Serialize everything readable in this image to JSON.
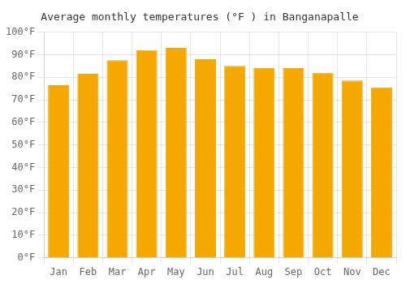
{
  "chart_data": {
    "type": "bar",
    "title": "Average monthly temperatures (°F ) in Banganapalle",
    "categories": [
      "Jan",
      "Feb",
      "Mar",
      "Apr",
      "May",
      "Jun",
      "Jul",
      "Aug",
      "Sep",
      "Oct",
      "Nov",
      "Dec"
    ],
    "values": [
      76.5,
      81.5,
      87.5,
      92.0,
      93.0,
      88.0,
      85.0,
      84.0,
      84.0,
      82.0,
      78.5,
      75.5
    ],
    "color": "#F5A800",
    "ylim": [
      0,
      100
    ],
    "yticks": [
      {
        "value": 0,
        "label": "0°F"
      },
      {
        "value": 10,
        "label": "10°F"
      },
      {
        "value": 20,
        "label": "20°F"
      },
      {
        "value": 30,
        "label": "30°F"
      },
      {
        "value": 40,
        "label": "40°F"
      },
      {
        "value": 50,
        "label": "50°F"
      },
      {
        "value": 60,
        "label": "60°F"
      },
      {
        "value": 70,
        "label": "70°F"
      },
      {
        "value": 80,
        "label": "80°F"
      },
      {
        "value": 90,
        "label": "90°F"
      },
      {
        "value": 100,
        "label": "100°F"
      }
    ],
    "grid": true
  }
}
